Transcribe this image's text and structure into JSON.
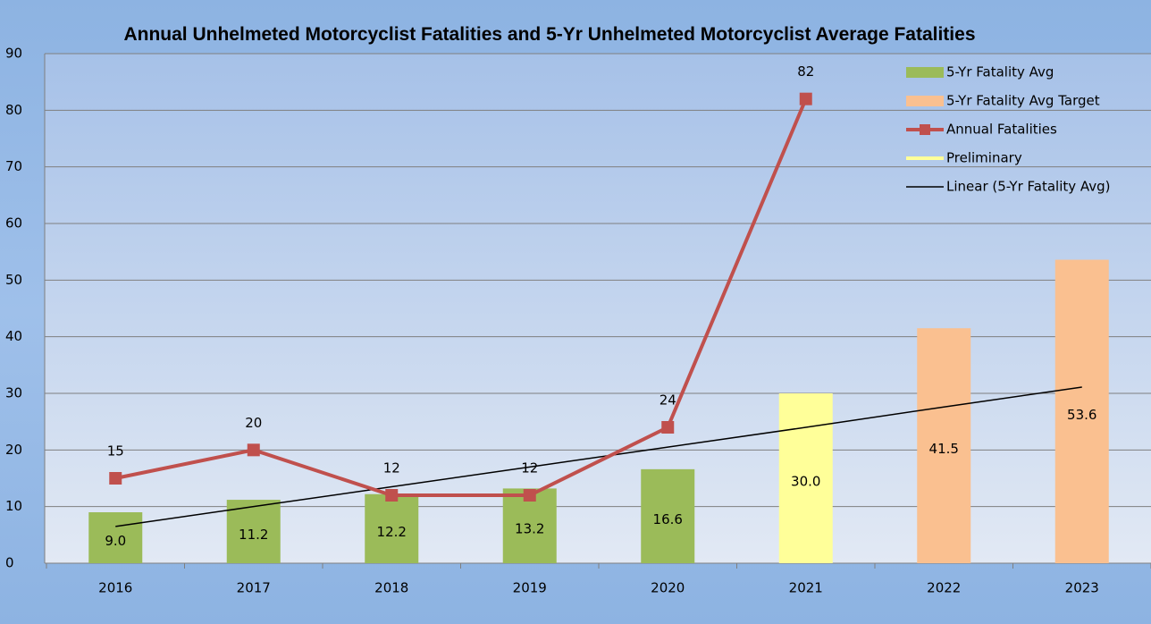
{
  "chart_data": {
    "type": "combo",
    "title": "Annual Unhelmeted Motorcyclist Fatalities and 5-Yr Unhelmeted Motorcyclist Average Fatalities",
    "categories": [
      "2016",
      "2017",
      "2018",
      "2019",
      "2020",
      "2021",
      "2022",
      "2023"
    ],
    "ylim": [
      0,
      90
    ],
    "yticks": [
      0,
      10,
      20,
      30,
      40,
      50,
      60,
      70,
      80,
      90
    ],
    "grid": true,
    "legend": "top-right",
    "series": [
      {
        "name": "5-Yr Fatality Avg",
        "kind": "bar",
        "color": "#9bbb59",
        "values": [
          9.0,
          11.2,
          12.2,
          13.2,
          16.6,
          null,
          null,
          null
        ],
        "value_labels": [
          "9.0",
          "11.2",
          "12.2",
          "13.2",
          "16.6",
          null,
          null,
          null
        ]
      },
      {
        "name": "5-Yr Fatality Avg Target",
        "kind": "bar",
        "color": "#fac090",
        "values": [
          null,
          null,
          null,
          null,
          null,
          null,
          41.5,
          53.6
        ],
        "value_labels": [
          null,
          null,
          null,
          null,
          null,
          null,
          "41.5",
          "53.6"
        ]
      },
      {
        "name": "Annual Fatalities",
        "kind": "line",
        "marker": "square",
        "color": "#c0504d",
        "values": [
          15,
          20,
          12,
          12,
          24,
          82,
          null,
          null
        ]
      },
      {
        "name": "Preliminary",
        "kind": "bar",
        "color": "#ffff99",
        "values": [
          null,
          null,
          null,
          null,
          null,
          30.0,
          null,
          null
        ],
        "value_labels": [
          null,
          null,
          null,
          null,
          null,
          "30.0",
          null,
          null
        ]
      },
      {
        "name": "Linear (5-Yr Fatality Avg)",
        "kind": "trend",
        "color": "#000000",
        "values": [
          6.5,
          10.0,
          13.5,
          17.0,
          20.5,
          24.0,
          27.6,
          31.1
        ]
      }
    ]
  }
}
